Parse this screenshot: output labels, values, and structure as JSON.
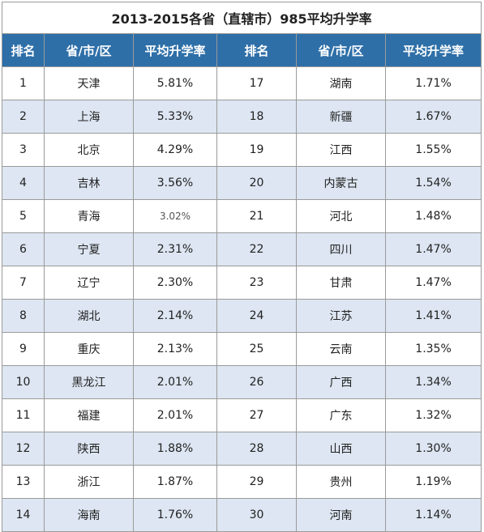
{
  "title": "2013-2015各省（直辖市）985平均升学率",
  "headers": [
    "排名",
    "省/市/区",
    "平均升学率",
    "排名",
    "省/市/区",
    "平均升学率"
  ],
  "rows": [
    {
      "r1": "1",
      "p1": "天津",
      "v1": "5.81%",
      "r2": "17",
      "p2": "湖南",
      "v2": "1.71%"
    },
    {
      "r1": "2",
      "p1": "上海",
      "v1": "5.33%",
      "r2": "18",
      "p2": "新疆",
      "v2": "1.67%"
    },
    {
      "r1": "3",
      "p1": "北京",
      "v1": "4.29%",
      "r2": "19",
      "p2": "江西",
      "v2": "1.55%"
    },
    {
      "r1": "4",
      "p1": "吉林",
      "v1": "3.56%",
      "r2": "20",
      "p2": "内蒙古",
      "v2": "1.54%"
    },
    {
      "r1": "5",
      "p1": "青海",
      "v1": "3.02%",
      "r2": "21",
      "p2": "河北",
      "v2": "1.48%"
    },
    {
      "r1": "6",
      "p1": "宁夏",
      "v1": "2.31%",
      "r2": "22",
      "p2": "四川",
      "v2": "1.47%"
    },
    {
      "r1": "7",
      "p1": "辽宁",
      "v1": "2.30%",
      "r2": "23",
      "p2": "甘肃",
      "v2": "1.47%"
    },
    {
      "r1": "8",
      "p1": "湖北",
      "v1": "2.14%",
      "r2": "24",
      "p2": "江苏",
      "v2": "1.41%"
    },
    {
      "r1": "9",
      "p1": "重庆",
      "v1": "2.13%",
      "r2": "25",
      "p2": "云南",
      "v2": "1.35%"
    },
    {
      "r1": "10",
      "p1": "黑龙江",
      "v1": "2.01%",
      "r2": "26",
      "p2": "广西",
      "v2": "1.34%"
    },
    {
      "r1": "11",
      "p1": "福建",
      "v1": "2.01%",
      "r2": "27",
      "p2": "广东",
      "v2": "1.32%"
    },
    {
      "r1": "12",
      "p1": "陕西",
      "v1": "1.88%",
      "r2": "28",
      "p2": "山西",
      "v2": "1.30%"
    },
    {
      "r1": "13",
      "p1": "浙江",
      "v1": "1.87%",
      "r2": "29",
      "p2": "贵州",
      "v2": "1.19%"
    },
    {
      "r1": "14",
      "p1": "海南",
      "v1": "1.76%",
      "r2": "30",
      "p2": "河南",
      "v2": "1.14%"
    }
  ],
  "colors": {
    "header_bg": "#2e6fa8",
    "header_fg": "#ffffff",
    "stripe": "#dde6f2",
    "border": "#9a9a9a"
  }
}
